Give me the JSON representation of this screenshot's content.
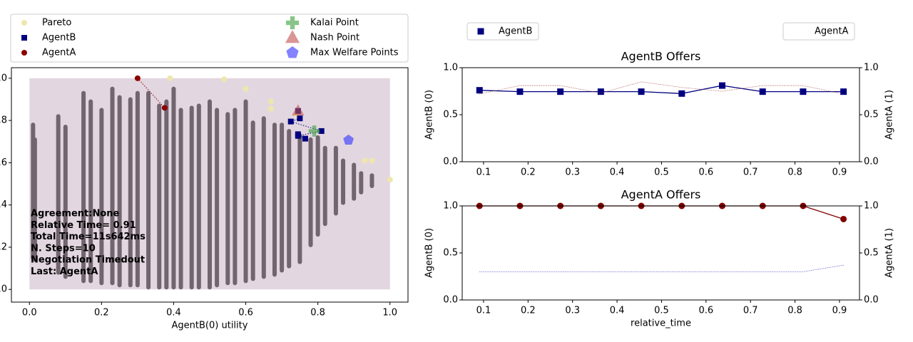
{
  "chart_data": [
    {
      "type": "scatter",
      "xlabel": "AgentB(0) utility",
      "xlim": [
        -0.05,
        1.05
      ],
      "ylim": [
        -0.06,
        1.05
      ],
      "xticks": [
        {
          "value": 0,
          "label": "0.0"
        },
        0.2,
        0.4,
        0.6,
        0.8,
        {
          "value": 1,
          "label": "1.0"
        }
      ],
      "yticks": [
        {
          "value": 0,
          "label": "0.0"
        },
        0.2,
        0.4,
        0.6,
        0.8,
        {
          "value": 1,
          "label": "1.0"
        }
      ],
      "region": {
        "x": [
          0,
          1
        ],
        "y": [
          0,
          1
        ],
        "color": "#e2d6e0"
      },
      "outcomes": {
        "color": "#72656f",
        "x": [
          0.01,
          0.015,
          0.08,
          0.1,
          0.15,
          0.17,
          0.2,
          0.23,
          0.25,
          0.28,
          0.3,
          0.33,
          0.36,
          0.38,
          0.4,
          0.42,
          0.45,
          0.47,
          0.5,
          0.52,
          0.55,
          0.57,
          0.6,
          0.62,
          0.65,
          0.68,
          0.7,
          0.72,
          0.75,
          0.78,
          0.8,
          0.82,
          0.85,
          0.87,
          0.9,
          0.92,
          0.95
        ],
        "low": [
          0.14,
          0.13,
          0.07,
          0.05,
          0.03,
          0.03,
          0.02,
          0.02,
          0.01,
          0.01,
          0.01,
          0,
          0,
          0,
          0,
          0,
          0,
          0,
          0,
          0.01,
          0.02,
          0.02,
          0.03,
          0.04,
          0.05,
          0.06,
          0.08,
          0.1,
          0.12,
          0.2,
          0.25,
          0.3,
          0.35,
          0.4,
          0.42,
          0.45,
          0.48
        ],
        "high": [
          0.79,
          0.72,
          0.83,
          0.78,
          0.94,
          0.9,
          0.86,
          0.96,
          0.92,
          0.91,
          0.94,
          0.94,
          0.88,
          0.9,
          0.96,
          0.86,
          0.87,
          0.88,
          0.9,
          0.86,
          0.84,
          0.86,
          0.9,
          0.8,
          0.82,
          0.79,
          0.79,
          0.76,
          0.74,
          0.72,
          0.73,
          0.68,
          0.68,
          0.62,
          0.6,
          0.56,
          0.55
        ]
      },
      "series": [
        {
          "name": "Pareto",
          "color": "#efe6ad",
          "marker": "circle",
          "x": [
            0.3,
            0.39,
            0.54,
            0.6,
            0.67,
            0.67,
            0.74,
            0.93,
            0.95,
            1.0
          ],
          "y": [
            1.0,
            1.0,
            0.995,
            0.95,
            0.89,
            0.855,
            0.83,
            0.61,
            0.61,
            0.52
          ]
        },
        {
          "name": "AgentB",
          "color": "#000080",
          "marker": "square",
          "line": "dotted",
          "x": [
            0.745,
            0.75,
            0.725,
            0.81,
            0.745,
            0.765,
            0.745
          ],
          "y": [
            0.845,
            0.81,
            0.795,
            0.75,
            0.727,
            0.714,
            0.735
          ]
        },
        {
          "name": "AgentA",
          "color": "#8b0000",
          "marker": "circle",
          "line": "dotted",
          "x": [
            0.3,
            0.375
          ],
          "y": [
            1.0,
            0.86
          ]
        },
        {
          "name": "Kalai Point",
          "color": "#3a9e3a",
          "marker": "plus",
          "x": [
            0.79
          ],
          "y": [
            0.75
          ]
        },
        {
          "name": "Nash Point",
          "color": "#c0504d",
          "marker": "triangle",
          "x": [
            0.745
          ],
          "y": [
            0.845
          ]
        },
        {
          "name": "Max Welfare Points",
          "color": "#3030ff",
          "marker": "pentagon",
          "x": [
            0.885
          ],
          "y": [
            0.707
          ]
        }
      ],
      "annotation": [
        "Agreement:None",
        "Relative Time= 0.91",
        "Total Time=11s642ms",
        "N. Steps=10",
        "Negotiation Timedout",
        "Last: AgentA"
      ]
    },
    {
      "type": "line",
      "title": "AgentB Offers",
      "ylabel": "AgentB (0)",
      "y2label": "AgentA (1)",
      "xlim": [
        0.052,
        0.945
      ],
      "ylim": [
        0,
        1
      ],
      "y2lim": [
        0,
        1
      ],
      "xticks": [
        0.1,
        0.2,
        0.3,
        0.4,
        0.5,
        0.6,
        0.7,
        0.8,
        0.9
      ],
      "yticks": [
        {
          "value": 0,
          "label": "0.0"
        },
        0.5,
        {
          "value": 1,
          "label": "1.0"
        }
      ],
      "y2ticks": [
        {
          "value": 0,
          "label": "0.0"
        },
        0.5,
        {
          "value": 1,
          "label": "1.0"
        }
      ],
      "x": [
        0.0909,
        0.1818,
        0.2727,
        0.3636,
        0.4545,
        0.5455,
        0.6364,
        0.7273,
        0.8182,
        0.9091
      ],
      "series": [
        {
          "name": "AgentB",
          "color": "#000080",
          "marker": "square",
          "values": [
            0.76,
            0.745,
            0.745,
            0.745,
            0.745,
            0.725,
            0.81,
            0.745,
            0.745,
            0.745
          ]
        },
        {
          "name": "AgentA",
          "color": "#a04040",
          "line": "dotted",
          "axis": "y2",
          "values": [
            0.72,
            0.81,
            0.81,
            0.73,
            0.85,
            0.79,
            0.75,
            0.81,
            0.81,
            0.72
          ]
        }
      ]
    },
    {
      "type": "line",
      "title": "AgentA Offers",
      "ylabel": "AgentB (0)",
      "y2label": "AgentA (1)",
      "xlabel": "relative_time",
      "xlim": [
        0.052,
        0.945
      ],
      "ylim": [
        0,
        1
      ],
      "y2lim": [
        0,
        1
      ],
      "xticks": [
        0.1,
        0.2,
        0.3,
        0.4,
        0.5,
        0.6,
        0.7,
        0.8,
        0.9
      ],
      "yticks": [
        {
          "value": 0,
          "label": "0.0"
        },
        0.5,
        {
          "value": 1,
          "label": "1.0"
        }
      ],
      "y2ticks": [
        {
          "value": 0,
          "label": "0.0"
        },
        0.5,
        {
          "value": 1,
          "label": "1.0"
        }
      ],
      "x": [
        0.0909,
        0.1818,
        0.2727,
        0.3636,
        0.4545,
        0.5455,
        0.6364,
        0.7273,
        0.8182,
        0.9091
      ],
      "series": [
        {
          "color": "#3030c0",
          "line": "dotted",
          "values": [
            0.3,
            0.3,
            0.3,
            0.3,
            0.3,
            0.3,
            0.3,
            0.3,
            0.3,
            0.37
          ]
        },
        {
          "color": "#800000",
          "marker": "circle",
          "axis": "y2",
          "values": [
            1,
            1,
            1,
            1,
            1,
            1,
            1,
            1,
            1,
            0.86
          ]
        }
      ]
    }
  ]
}
